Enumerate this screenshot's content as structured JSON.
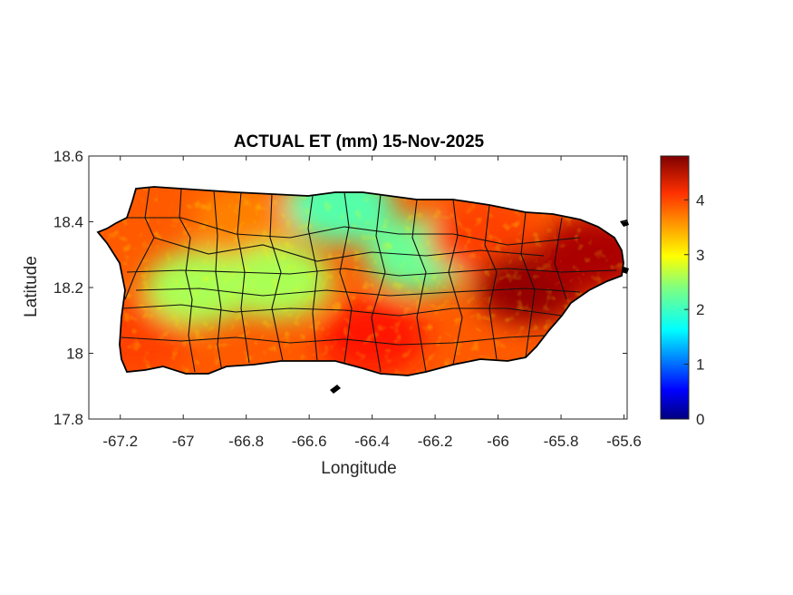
{
  "chart_data": {
    "type": "heatmap",
    "title": "ACTUAL ET (mm) 15-Nov-2025",
    "xlabel": "Longitude",
    "ylabel": "Latitude",
    "xlim": [
      -67.3,
      -65.59
    ],
    "ylim": [
      17.8,
      18.6
    ],
    "xticks": [
      -67.2,
      -67,
      -66.8,
      -66.6,
      -66.4,
      -66.2,
      -66,
      -65.8,
      -65.6
    ],
    "yticks": [
      17.8,
      18,
      18.2,
      18.4,
      18.6
    ],
    "xtick_labels": [
      "-67.2",
      "-67",
      "-66.8",
      "-66.6",
      "-66.4",
      "-66.2",
      "-66",
      "-65.8",
      "-65.6"
    ],
    "ytick_labels": [
      "17.8",
      "18",
      "18.2",
      "18.4",
      "18.6"
    ],
    "colorbar": {
      "colormap": "jet",
      "range": [
        0,
        4.8
      ],
      "ticks": [
        0,
        1,
        2,
        3,
        4
      ],
      "tick_labels": [
        "0",
        "1",
        "2",
        "3",
        "4"
      ]
    },
    "grid": false,
    "region": "Puerto Rico municipalities",
    "value_zones": [
      {
        "lon": -67.15,
        "lat": 18.05,
        "value": 3.9
      },
      {
        "lon": -66.95,
        "lat": 18.2,
        "value": 2.6
      },
      {
        "lon": -66.8,
        "lat": 18.4,
        "value": 3.6
      },
      {
        "lon": -66.7,
        "lat": 18.22,
        "value": 2.6
      },
      {
        "lon": -66.5,
        "lat": 18.45,
        "value": 2.2
      },
      {
        "lon": -66.4,
        "lat": 18.05,
        "value": 4.1
      },
      {
        "lon": -66.25,
        "lat": 18.3,
        "value": 2.3
      },
      {
        "lon": -66.05,
        "lat": 18.35,
        "value": 3.9
      },
      {
        "lon": -65.9,
        "lat": 18.2,
        "value": 4.7
      },
      {
        "lon": -65.7,
        "lat": 18.3,
        "value": 4.6
      }
    ]
  }
}
